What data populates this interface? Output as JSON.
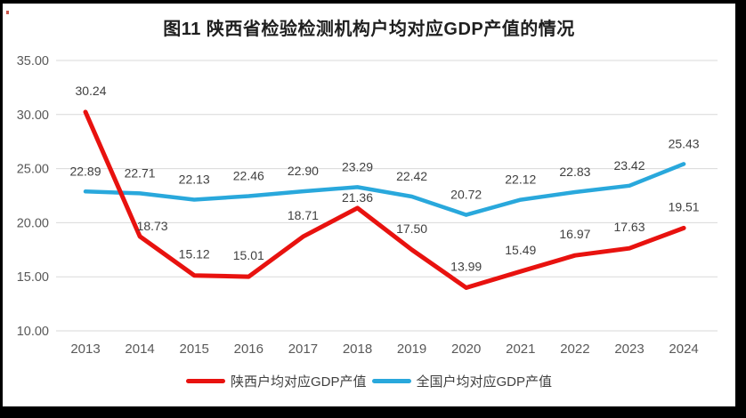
{
  "title": "图11  陕西省检验检测机构户均对应GDP产值的情况",
  "chart_data": {
    "type": "line",
    "title": "图11  陕西省检验检测机构户均对应GDP产值的情况",
    "categories": [
      "2013",
      "2014",
      "2015",
      "2016",
      "2017",
      "2018",
      "2019",
      "2020",
      "2021",
      "2022",
      "2023",
      "2024"
    ],
    "series": [
      {
        "name": "陕西户均对应GDP产值",
        "color": "#e8120f",
        "values": [
          30.24,
          18.73,
          15.12,
          15.01,
          18.71,
          21.36,
          17.5,
          13.99,
          15.49,
          16.97,
          17.63,
          19.51
        ]
      },
      {
        "name": "全国户均对应GDP产值",
        "color": "#29a8dc",
        "values": [
          22.89,
          22.71,
          22.13,
          22.46,
          22.9,
          23.29,
          22.42,
          20.72,
          22.12,
          22.83,
          23.42,
          25.43
        ]
      }
    ],
    "ylim": [
      10,
      35
    ],
    "ytick_step": 5,
    "ytick_labels": [
      "10.00",
      "15.00",
      "20.00",
      "25.00",
      "30.00",
      "35.00"
    ],
    "xlabel": "",
    "ylabel": "",
    "grid": true,
    "data_labels": true,
    "legend_position": "bottom"
  },
  "colors": {
    "grid": "#d9d9d9",
    "tick_text": "#595959",
    "data_label_text": "#404040",
    "title_text": "#1f1f1f",
    "background": "#ffffff",
    "frame": "#000000"
  }
}
